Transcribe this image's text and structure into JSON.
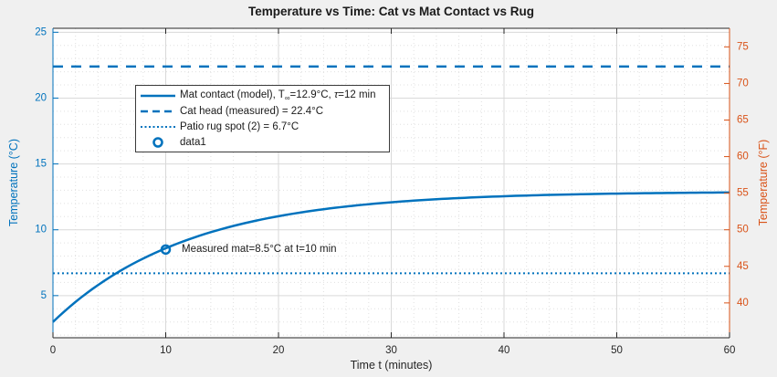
{
  "title": "Temperature vs Time: Cat vs Mat Contact vs Rug",
  "colors": {
    "blue": "#0072BD",
    "orange": "#D95319",
    "text_dark": "#262626",
    "title_text": "#1a1a1a",
    "grid_major": "#D9D9D9",
    "grid_minor": "#E0E0E0",
    "figure_background": "#F0F0F0",
    "plot_background": "#FFFFFF"
  },
  "axes": {
    "x": {
      "label": "Time t (minutes)",
      "lim": [
        0,
        60
      ],
      "ticks": [
        0,
        10,
        20,
        30,
        40,
        50,
        60
      ],
      "minor_step": 2
    },
    "y_left": {
      "label": "Temperature (°C)",
      "lim": [
        1.8,
        25.3
      ],
      "ticks": [
        5,
        10,
        15,
        20,
        25
      ],
      "minor_step": 1
    },
    "y_right": {
      "label": "Temperature (°F)",
      "ticks": [
        40,
        45,
        50,
        55,
        60,
        65,
        70,
        75
      ]
    }
  },
  "chart_data": {
    "type": "line",
    "xlabel": "Time t (minutes)",
    "ylabel_left": "Temperature (°C)",
    "ylabel_right": "Temperature (°F)",
    "title": "Temperature vs Time: Cat vs Mat Contact vs Rug",
    "grid": "major-and-minor",
    "legend_position": "upper-left-inside",
    "series": [
      {
        "name": "Mat contact (model)",
        "style": "solid",
        "line_width": 2.5,
        "model": {
          "type": "exponential-approach",
          "T_inf_C": 12.9,
          "T0_C": 3.0,
          "tau_min": 12
        },
        "x_sample": [
          0,
          5,
          10,
          15,
          20,
          25,
          30,
          35,
          40,
          45,
          50,
          55,
          60
        ],
        "y_sample": [
          3.0,
          6.37,
          8.6,
          10.06,
          11.03,
          11.67,
          12.09,
          12.36,
          12.55,
          12.67,
          12.75,
          12.8,
          12.83
        ]
      },
      {
        "name": "Cat head (measured)",
        "style": "dashed",
        "line_width": 2.5,
        "constant_C": 22.4
      },
      {
        "name": "Patio rug spot (2)",
        "style": "dotted",
        "line_width": 2,
        "constant_C": 6.7
      },
      {
        "name": "data1",
        "style": "marker-circle",
        "line_width": 2.5,
        "points": [
          {
            "x": 10,
            "y": 8.5
          }
        ]
      }
    ]
  },
  "legend": {
    "items": [
      {
        "parts": {
          "p1": "Mat contact (model), T",
          "sub": "∞",
          "p2": "=12.9°C, ",
          "tau": "τ",
          "p3": "=12 min"
        }
      },
      {
        "label": "Cat head (measured) = 22.4°C"
      },
      {
        "label": "Patio rug spot (2) = 6.7°C"
      },
      {
        "label": "data1"
      }
    ]
  },
  "annotation": {
    "text": "Measured mat=8.5°C at t=10 min",
    "at_x_min": 10,
    "at_y_C": 8.5
  }
}
